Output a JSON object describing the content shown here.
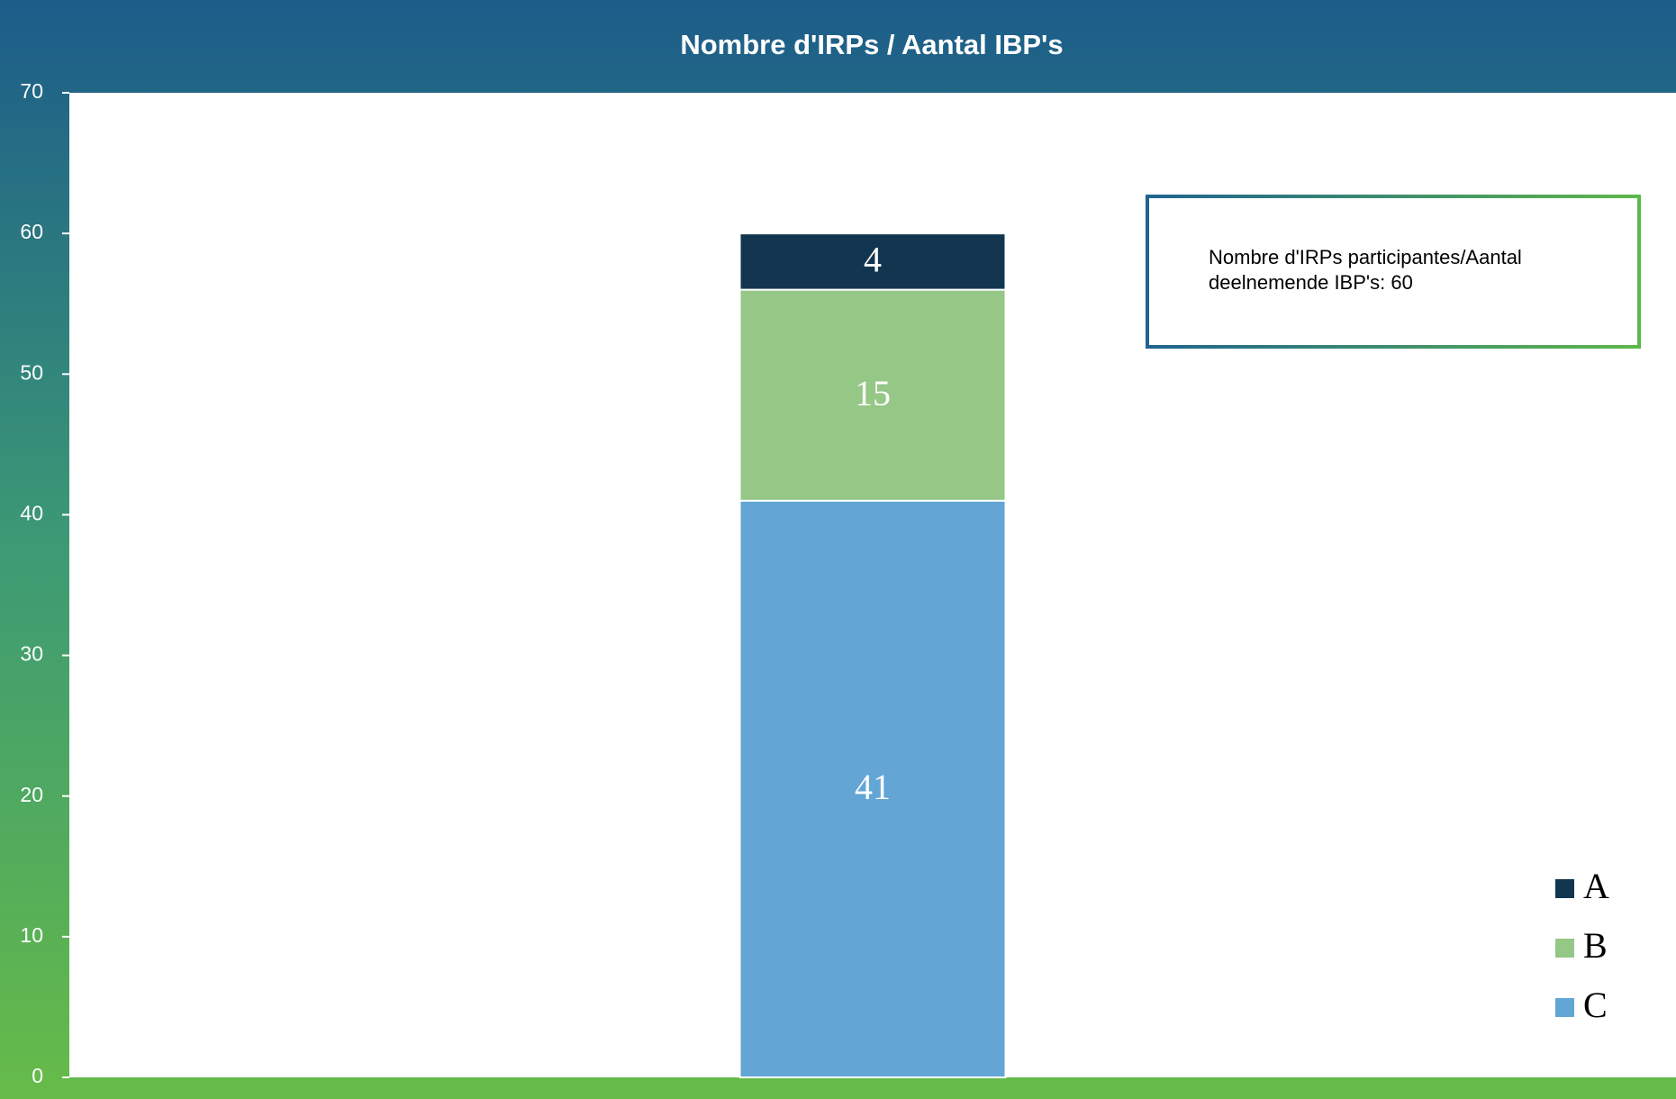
{
  "chart_data": {
    "type": "stacked_bar",
    "title": "Nombre d'IRPs / Aantal IBP's",
    "categories": [
      null
    ],
    "series": [
      {
        "name": "A",
        "color": "#12364f",
        "values": [
          4
        ]
      },
      {
        "name": "B",
        "color": "#95c786",
        "values": [
          15
        ]
      },
      {
        "name": "C",
        "color": "#63a6d5",
        "values": [
          41
        ]
      }
    ],
    "ylim": [
      0,
      70
    ],
    "yticks": [
      0,
      10,
      20,
      30,
      40,
      50,
      60,
      70
    ],
    "annotation": [
      "Nombre d'IRPs participantes/Aantal",
      "deelnemende IBP's: 60"
    ],
    "legend": "lower right"
  }
}
